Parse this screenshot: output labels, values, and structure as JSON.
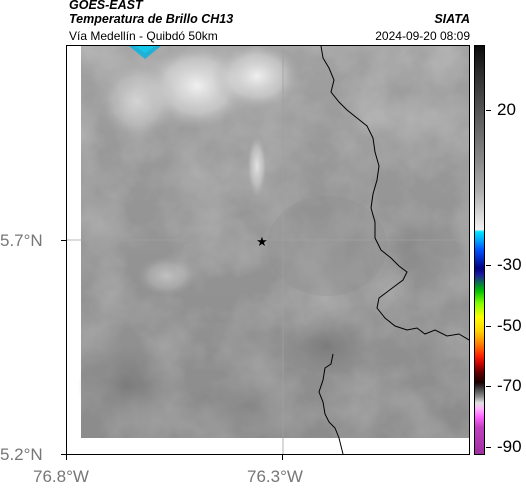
{
  "header": {
    "satellite": "GOES-EAST",
    "product": "Temperatura de Brillo CH13",
    "organization": "SIATA",
    "subtitle": "Vía Medellín - Quibdó 50km",
    "datetime": "2024-09-20 08:09"
  },
  "map": {
    "lat_labels": [
      "5.7°N",
      "5.2°N"
    ],
    "lon_labels": [
      "76.8°W",
      "76.3°W"
    ],
    "marker": "star",
    "colors": {
      "background_gray": "#8c8c8c",
      "coastline": "#000000",
      "gridline": "#9a9a9a"
    }
  },
  "colorbar": {
    "labels": [
      "20",
      "-30",
      "-50",
      "-70",
      "-90"
    ]
  }
}
